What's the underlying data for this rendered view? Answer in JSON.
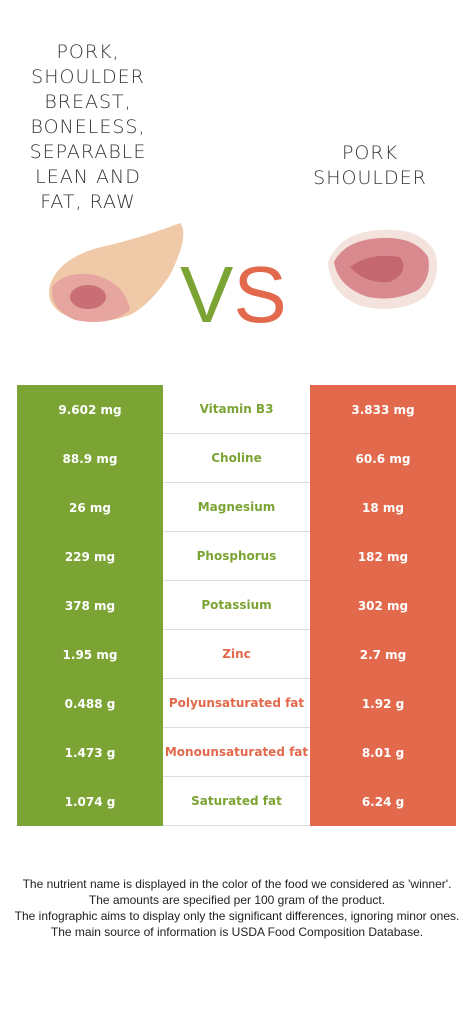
{
  "header": {
    "left_title": "PORK, SHOULDER BREAST, BONELESS, SEPARABLE LEAN AND FAT, RAW",
    "vs_v": "V",
    "vs_s": "S",
    "right_title": "PORK SHOULDER"
  },
  "colors": {
    "left": "#7ba434",
    "right": "#e2694c"
  },
  "table": {
    "rows": [
      {
        "left": "9.602 mg",
        "nutrient": "Vitamin B3",
        "right": "3.833 mg",
        "winner": "left"
      },
      {
        "left": "88.9 mg",
        "nutrient": "Choline",
        "right": "60.6 mg",
        "winner": "left"
      },
      {
        "left": "26 mg",
        "nutrient": "Magnesium",
        "right": "18 mg",
        "winner": "left"
      },
      {
        "left": "229 mg",
        "nutrient": "Phosphorus",
        "right": "182 mg",
        "winner": "left"
      },
      {
        "left": "378 mg",
        "nutrient": "Potassium",
        "right": "302 mg",
        "winner": "left"
      },
      {
        "left": "1.95 mg",
        "nutrient": "Zinc",
        "right": "2.7 mg",
        "winner": "right"
      },
      {
        "left": "0.488 g",
        "nutrient": "Polyunsaturated fat",
        "right": "1.92 g",
        "winner": "right"
      },
      {
        "left": "1.473 g",
        "nutrient": "Monounsaturated fat",
        "right": "8.01 g",
        "winner": "right"
      },
      {
        "left": "1.074 g",
        "nutrient": "Saturated fat",
        "right": "6.24 g",
        "winner": "left"
      }
    ]
  },
  "footer": [
    "The nutrient name is displayed in the color of the food we considered as 'winner'.",
    "The amounts are specified per 100 gram of the product.",
    "The infographic aims to display only the significant differences, ignoring minor ones.",
    "The main source of information is USDA Food Composition Database."
  ]
}
